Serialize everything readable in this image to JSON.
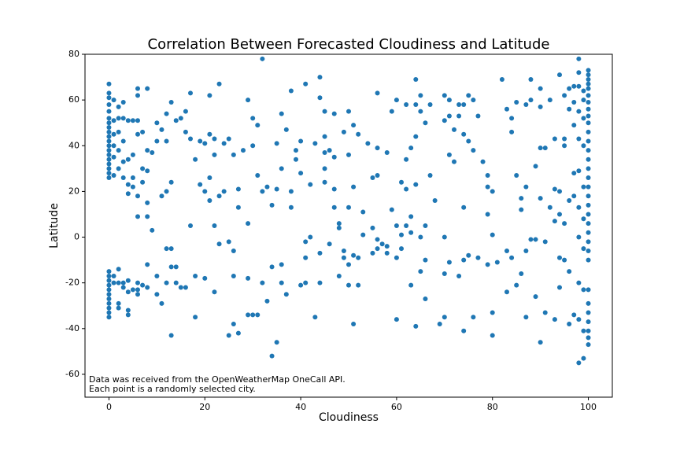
{
  "chart_data": {
    "type": "scatter",
    "title": "Correlation Between Forecasted Cloudiness and Latitude",
    "x_label": "Cloudiness",
    "y_label": "Latitude",
    "annotation": [
      "Data was received from the OpenWeatherMap OneCall API.",
      "Each point is a randomly selected city."
    ],
    "xlim": [
      -5,
      105
    ],
    "ylim": [
      -70,
      80
    ],
    "xticks": [
      0,
      20,
      40,
      60,
      80,
      100
    ],
    "yticks": [
      -60,
      -40,
      -20,
      0,
      20,
      40,
      60,
      80
    ],
    "series": [
      {
        "color": "#1f77b4",
        "x": [
          0,
          0,
          0,
          0,
          0,
          0,
          0,
          0,
          0,
          0,
          0,
          0,
          0,
          0,
          0,
          0,
          0,
          0,
          0,
          0,
          0,
          0,
          0,
          0,
          0,
          0,
          0,
          0,
          0,
          0,
          1,
          1,
          1,
          1,
          1,
          1,
          1,
          1,
          2,
          2,
          2,
          2,
          2,
          2,
          2,
          2,
          2,
          3,
          3,
          3,
          3,
          3,
          3,
          3,
          4,
          4,
          4,
          4,
          4,
          4,
          4,
          4,
          5,
          5,
          5,
          5,
          5,
          6,
          6,
          6,
          6,
          6,
          6,
          6,
          6,
          6,
          7,
          7,
          7,
          7,
          8,
          8,
          8,
          8,
          8,
          8,
          8,
          9,
          9,
          10,
          10,
          10,
          10,
          11,
          11,
          11,
          12,
          12,
          12,
          12,
          12,
          13,
          13,
          13,
          13,
          13,
          14,
          14,
          14,
          15,
          15,
          16,
          16,
          16,
          17,
          17,
          17,
          18,
          18,
          18,
          19,
          19,
          20,
          20,
          20,
          21,
          21,
          21,
          21,
          22,
          22,
          22,
          22,
          23,
          23,
          23,
          24,
          24,
          25,
          25,
          25,
          26,
          26,
          26,
          26,
          27,
          27,
          27,
          28,
          29,
          29,
          29,
          29,
          30,
          30,
          30,
          31,
          31,
          31,
          32,
          32,
          32,
          33,
          33,
          34,
          34,
          34,
          35,
          35,
          35,
          36,
          36,
          36,
          36,
          37,
          37,
          38,
          38,
          38,
          39,
          39,
          40,
          40,
          40,
          41,
          41,
          41,
          41,
          42,
          42,
          43,
          43,
          44,
          44,
          44,
          44,
          45,
          45,
          45,
          45,
          45,
          46,
          46,
          47,
          47,
          47,
          47,
          48,
          48,
          48,
          49,
          49,
          49,
          50,
          50,
          50,
          50,
          50,
          51,
          51,
          51,
          51,
          52,
          52,
          52,
          53,
          53,
          54,
          55,
          55,
          55,
          56,
          56,
          56,
          56,
          56,
          57,
          58,
          58,
          58,
          59,
          59,
          60,
          60,
          60,
          60,
          61,
          61,
          61,
          62,
          62,
          62,
          62,
          63,
          63,
          63,
          63,
          64,
          64,
          64,
          64,
          64,
          65,
          65,
          65,
          65,
          66,
          66,
          66,
          66,
          67,
          67,
          68,
          69,
          70,
          70,
          70,
          70,
          70,
          71,
          71,
          71,
          71,
          72,
          72,
          73,
          73,
          73,
          74,
          74,
          74,
          74,
          74,
          75,
          75,
          75,
          76,
          76,
          76,
          77,
          77,
          78,
          79,
          79,
          79,
          79,
          80,
          80,
          80,
          80,
          81,
          82,
          83,
          83,
          83,
          84,
          84,
          84,
          85,
          85,
          85,
          86,
          86,
          86,
          87,
          87,
          87,
          87,
          88,
          88,
          88,
          89,
          89,
          89,
          90,
          90,
          90,
          90,
          90,
          91,
          91,
          91,
          92,
          92,
          93,
          93,
          93,
          93,
          94,
          94,
          94,
          94,
          94,
          95,
          95,
          95,
          95,
          95,
          96,
          96,
          96,
          96,
          96,
          97,
          97,
          97,
          97,
          97,
          97,
          98,
          98,
          98,
          98,
          98,
          98,
          98,
          98,
          98,
          98,
          98,
          99,
          99,
          99,
          99,
          99,
          99,
          99,
          99,
          99,
          99,
          100,
          100,
          100,
          100,
          100,
          100,
          100,
          100,
          100,
          100,
          100,
          100,
          100,
          100,
          100,
          100,
          100,
          100,
          100,
          100,
          100,
          100,
          100,
          100,
          100,
          100,
          100,
          100,
          100,
          100,
          100,
          100
        ],
        "values": [
          67,
          63,
          61,
          58,
          55,
          52,
          50,
          48,
          46,
          44,
          42,
          40,
          38,
          36,
          34,
          32,
          30,
          28,
          26,
          -15,
          -17,
          -19,
          -21,
          -23,
          -25,
          -27,
          -29,
          -31,
          -33,
          -35,
          60,
          51,
          45,
          40,
          35,
          27,
          -20,
          -17,
          57,
          52,
          46,
          38,
          30,
          -14,
          -20,
          -29,
          -31,
          59,
          52,
          42,
          33,
          26,
          -20,
          -22,
          51,
          34,
          23,
          19,
          -19,
          -24,
          -32,
          -34,
          51,
          36,
          26,
          22,
          -23,
          65,
          62,
          51,
          45,
          18,
          9,
          -20,
          -23,
          -25,
          46,
          30,
          24,
          -21,
          65,
          38,
          29,
          15,
          9,
          -12,
          -22,
          37,
          3,
          50,
          42,
          -25,
          -17,
          47,
          18,
          -29,
          54,
          42,
          -5,
          -20,
          20,
          59,
          24,
          -5,
          -13,
          -43,
          51,
          -13,
          -20,
          52,
          -22,
          55,
          46,
          -22,
          63,
          43,
          5,
          34,
          -17,
          -35,
          42,
          23,
          41,
          20,
          -18,
          62,
          45,
          26,
          16,
          43,
          36,
          5,
          -24,
          67,
          18,
          -3,
          41,
          20,
          43,
          -2,
          -43,
          36,
          -6,
          -17,
          -38,
          21,
          13,
          -42,
          38,
          60,
          6,
          -18,
          -34,
          52,
          40,
          -34,
          49,
          27,
          -34,
          78,
          20,
          -20,
          22,
          -28,
          14,
          -13,
          -52,
          41,
          21,
          -46,
          54,
          30,
          -20,
          -12,
          47,
          -25,
          64,
          20,
          13,
          34,
          38,
          42,
          28,
          -21,
          67,
          -2,
          -9,
          -20,
          23,
          0,
          41,
          -35,
          70,
          61,
          -7,
          -20,
          55,
          44,
          30,
          24,
          37,
          38,
          -3,
          54,
          35,
          21,
          13,
          4,
          -17,
          6,
          46,
          -6,
          -9,
          55,
          36,
          13,
          -21,
          -12,
          49,
          22,
          -38,
          -8,
          45,
          -9,
          -21,
          11,
          1,
          41,
          26,
          4,
          -7,
          63,
          39,
          27,
          -1,
          -5,
          -3,
          37,
          -4,
          -7,
          55,
          12,
          60,
          5,
          -9,
          -36,
          24,
          1,
          -5,
          58,
          34,
          21,
          5,
          39,
          9,
          2,
          -21,
          69,
          58,
          44,
          23,
          -39,
          62,
          55,
          0,
          -15,
          50,
          -10,
          -27,
          5,
          58,
          27,
          16,
          -38,
          62,
          51,
          0,
          -16,
          -35,
          60,
          36,
          53,
          -11,
          47,
          33,
          58,
          53,
          -17,
          58,
          45,
          13,
          -10,
          -41,
          42,
          62,
          -8,
          60,
          38,
          -35,
          53,
          -9,
          33,
          27,
          22,
          10,
          -12,
          20,
          1,
          -33,
          -43,
          -11,
          69,
          56,
          -6,
          -24,
          52,
          46,
          -9,
          59,
          27,
          -21,
          17,
          12,
          -16,
          58,
          22,
          -6,
          -35,
          69,
          60,
          -1,
          31,
          -1,
          -26,
          65,
          57,
          39,
          17,
          -46,
          39,
          -2,
          -33,
          60,
          13,
          43,
          21,
          7,
          -36,
          71,
          20,
          10,
          -9,
          -22,
          62,
          43,
          40,
          6,
          -10,
          65,
          56,
          16,
          -15,
          -38,
          66,
          59,
          49,
          28,
          18,
          -34,
          78,
          72,
          66,
          55,
          43,
          29,
          13,
          0,
          -20,
          -36,
          -55,
          64,
          60,
          52,
          40,
          22,
          8,
          -5,
          -23,
          -41,
          -53,
          73,
          71,
          69,
          67,
          65,
          62,
          59,
          56,
          53,
          50,
          46,
          42,
          38,
          34,
          30,
          26,
          22,
          18,
          14,
          10,
          6,
          2,
          -2,
          -6,
          -10,
          -23,
          -29,
          -33,
          -37,
          -41,
          -44,
          -47
        ]
      }
    ]
  }
}
